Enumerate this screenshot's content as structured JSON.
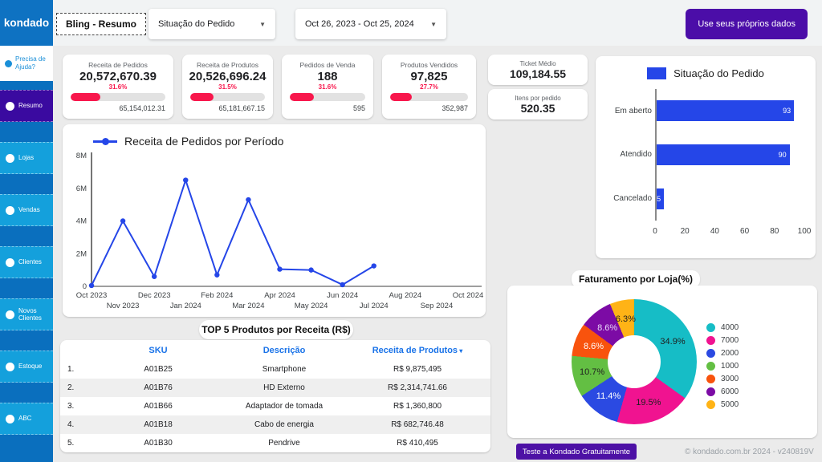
{
  "brand": {
    "logo": "kondado",
    "help_label": "Precisa de Ajuda?"
  },
  "topbar": {
    "report_title": "Bling - Resumo",
    "situacao_filter_label": "Situação do Pedido",
    "date_range": "Oct 26, 2023 - Oct 25, 2024",
    "cta_label": "Use seus próprios dados",
    "caret": "▼"
  },
  "sidebar": {
    "items": [
      {
        "label": "Resumo",
        "active": true
      },
      {
        "label": "Lojas",
        "active": false
      },
      {
        "label": "Vendas",
        "active": false
      },
      {
        "label": "Clientes",
        "active": false
      },
      {
        "label": "Novos Clientes",
        "active": false
      },
      {
        "label": "Estoque",
        "active": false
      },
      {
        "label": "ABC",
        "active": false
      }
    ]
  },
  "kpis": [
    {
      "label": "Receita de Pedidos",
      "value": "20,572,670.39",
      "pct": "31.6%",
      "pct_num": 31.6,
      "total": "65,154,012.31"
    },
    {
      "label": "Receita de Produtos",
      "value": "20,526,696.24",
      "pct": "31.5%",
      "pct_num": 31.5,
      "total": "65,181,667.15"
    },
    {
      "label": "Pedidos de Venda",
      "value": "188",
      "pct": "31.6%",
      "pct_num": 31.6,
      "total": "595"
    },
    {
      "label": "Produtos Vendidos",
      "value": "97,825",
      "pct": "27.7%",
      "pct_num": 27.7,
      "total": "352,987"
    }
  ],
  "mini_kpis": [
    {
      "label": "Ticket Médio",
      "value": "109,184.55"
    },
    {
      "label": "Itens por pedido",
      "value": "520.35"
    }
  ],
  "chart_data": [
    {
      "type": "line",
      "title": "Receita de Pedidos por Período",
      "x_ticks": [
        "Oct 2023",
        "Nov 2023",
        "Dec 2023",
        "Jan 2024",
        "Feb 2024",
        "Mar 2024",
        "Apr 2024",
        "May 2024",
        "Jun 2024",
        "Jul 2024",
        "Aug 2024",
        "Sep 2024",
        "Oct 2024"
      ],
      "x": [
        "Oct 2023",
        "Nov 2023",
        "Dec 2023",
        "Jan 2024",
        "Feb 2024",
        "Mar 2024",
        "Apr 2024",
        "May 2024",
        "Jun 2024",
        "Jul 2024"
      ],
      "values_millions": [
        0.05,
        4.0,
        0.6,
        6.5,
        0.7,
        5.3,
        1.05,
        1.0,
        0.1,
        1.25
      ],
      "y_ticks": [
        "0",
        "2M",
        "4M",
        "6M",
        "8M"
      ],
      "ylim_millions": [
        0,
        8
      ],
      "color": "#2546e8",
      "legend_position": "top-left",
      "grid": false
    },
    {
      "type": "bar",
      "orientation": "horizontal",
      "title": "Situação do Pedido",
      "categories": [
        "Em aberto",
        "Atendido",
        "Cancelado"
      ],
      "values": [
        93,
        90,
        5
      ],
      "xlim": [
        0,
        100
      ],
      "x_ticks": [
        0,
        20,
        40,
        60,
        80,
        100
      ],
      "color": "#2546e8",
      "legend_position": "top-center",
      "grid": false
    },
    {
      "type": "pie",
      "title": "Faturamento por Loja(%)",
      "labels": [
        "4000",
        "7000",
        "2000",
        "1000",
        "3000",
        "6000",
        "5000"
      ],
      "values": [
        34.9,
        19.5,
        11.4,
        10.7,
        8.6,
        8.6,
        6.3
      ],
      "value_labels": [
        "34.9%",
        "19.5%",
        "11.4%",
        "10.7%",
        "8.6%",
        "8.6%",
        "6.3%"
      ],
      "colors": [
        "#16bdc6",
        "#f01390",
        "#2b4ae2",
        "#63bf43",
        "#f8530d",
        "#7c0ba5",
        "#ffb316"
      ],
      "label_text_colors": [
        "#1f1f1f",
        "#1f1f1f",
        "#ffffff",
        "#1f1f1f",
        "#ffffff",
        "#e9d7f7",
        "#1f1f1f"
      ],
      "donut": true,
      "legend_position": "right"
    }
  ],
  "table": {
    "title": "TOP 5 Produtos por Receita (R$)",
    "columns": [
      "SKU",
      "Descrição",
      "Receita de Produtos"
    ],
    "sorted_column": "Receita de Produtos",
    "sort_indicator": "▾",
    "rows": [
      {
        "rank": "1.",
        "sku": "A01B25",
        "desc": "Smartphone",
        "receita": "R$ 9,875,495"
      },
      {
        "rank": "2.",
        "sku": "A01B76",
        "desc": "HD Externo",
        "receita": "R$ 2,314,741.66"
      },
      {
        "rank": "3.",
        "sku": "A01B66",
        "desc": "Adaptador de tomada",
        "receita": "R$ 1,360,800"
      },
      {
        "rank": "4.",
        "sku": "A01B18",
        "desc": "Cabo de energia",
        "receita": "R$ 682,746.48"
      },
      {
        "rank": "5.",
        "sku": "A01B30",
        "desc": "Pendrive",
        "receita": "R$ 410,495"
      }
    ]
  },
  "footer": {
    "cta_label": "Teste a Kondado Gratuitamente",
    "copyright": "© kondado.com.br 2024 - v240819V"
  },
  "colors": {
    "sidebar_bg": "#0a6fbe",
    "sidebar_item": "#14a0dc",
    "sidebar_active": "#3a0aa0",
    "accent_red": "#f8174c",
    "chart_blue": "#2546e8",
    "table_header_blue": "#1a73e8",
    "purple_button": "#4b0da8"
  }
}
